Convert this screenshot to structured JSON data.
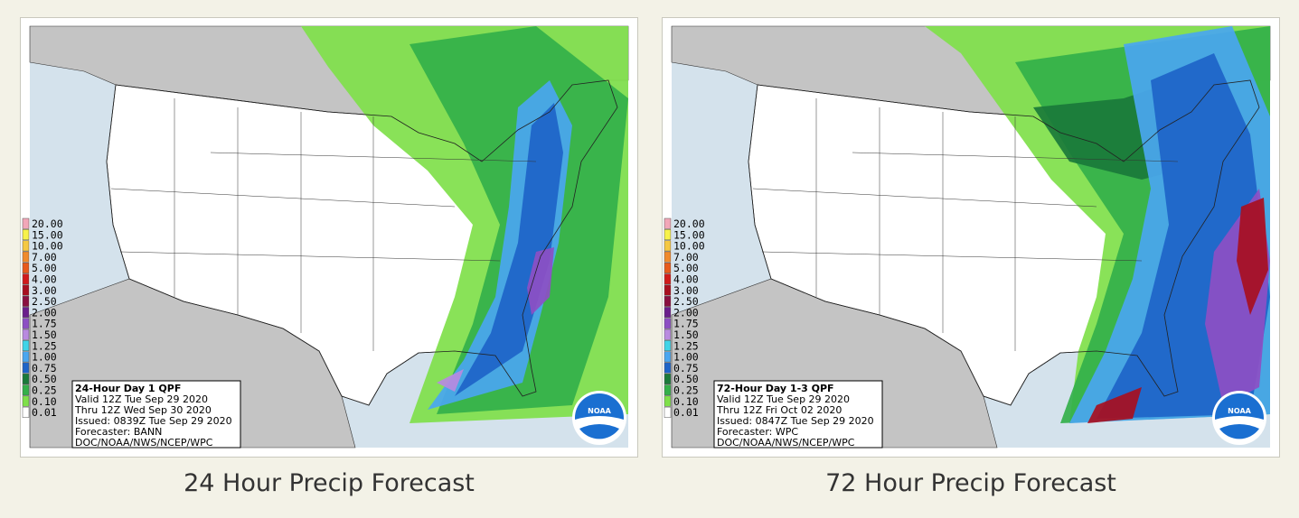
{
  "panels": [
    {
      "caption": "24 Hour Precip Forecast",
      "legend": [
        {
          "label": "20.00",
          "color": "#f2a7b8"
        },
        {
          "label": "15.00",
          "color": "#f7f24a"
        },
        {
          "label": "10.00",
          "color": "#f5c843"
        },
        {
          "label": "7.00",
          "color": "#f08a2c"
        },
        {
          "label": "5.00",
          "color": "#e85a1c"
        },
        {
          "label": "4.00",
          "color": "#d11a1a"
        },
        {
          "label": "3.00",
          "color": "#a80f1f"
        },
        {
          "label": "2.50",
          "color": "#8a1040"
        },
        {
          "label": "2.00",
          "color": "#6b1f8c"
        },
        {
          "label": "1.75",
          "color": "#8d4fc4"
        },
        {
          "label": "1.50",
          "color": "#b98ae0"
        },
        {
          "label": "1.25",
          "color": "#3fd4e8"
        },
        {
          "label": "1.00",
          "color": "#4aa6f0"
        },
        {
          "label": "0.75",
          "color": "#1e64c8"
        },
        {
          "label": "0.50",
          "color": "#1a7a3a"
        },
        {
          "label": "0.25",
          "color": "#33b04a"
        },
        {
          "label": "0.10",
          "color": "#7fe04a"
        },
        {
          "label": "0.01",
          "color": "#ffffff"
        }
      ],
      "info": [
        "24-Hour Day 1 QPF",
        "Valid 12Z Tue Sep 29 2020",
        "Thru 12Z Wed Sep 30 2020",
        "Issued: 0839Z Tue Sep 29 2020",
        "Forecaster: BANN",
        "DOC/NOAA/NWS/NCEP/WPC"
      ],
      "logo": "NOAA"
    },
    {
      "caption": "72 Hour Precip Forecast",
      "legend": [
        {
          "label": "20.00",
          "color": "#f2a7b8"
        },
        {
          "label": "15.00",
          "color": "#f7f24a"
        },
        {
          "label": "10.00",
          "color": "#f5c843"
        },
        {
          "label": "7.00",
          "color": "#f08a2c"
        },
        {
          "label": "5.00",
          "color": "#e85a1c"
        },
        {
          "label": "4.00",
          "color": "#d11a1a"
        },
        {
          "label": "3.00",
          "color": "#a80f1f"
        },
        {
          "label": "2.50",
          "color": "#8a1040"
        },
        {
          "label": "2.00",
          "color": "#6b1f8c"
        },
        {
          "label": "1.75",
          "color": "#8d4fc4"
        },
        {
          "label": "1.50",
          "color": "#b98ae0"
        },
        {
          "label": "1.25",
          "color": "#3fd4e8"
        },
        {
          "label": "1.00",
          "color": "#4aa6f0"
        },
        {
          "label": "0.75",
          "color": "#1e64c8"
        },
        {
          "label": "0.50",
          "color": "#1a7a3a"
        },
        {
          "label": "0.25",
          "color": "#33b04a"
        },
        {
          "label": "0.10",
          "color": "#7fe04a"
        },
        {
          "label": "0.01",
          "color": "#ffffff"
        }
      ],
      "info": [
        "72-Hour Day 1-3 QPF",
        "Valid 12Z Tue Sep 29 2020",
        "Thru 12Z Fri Oct 02 2020",
        "Issued: 0847Z Tue Sep 29 2020",
        "Forecaster: WPC",
        "DOC/NOAA/NWS/NCEP/WPC"
      ],
      "logo": "NOAA"
    }
  ]
}
